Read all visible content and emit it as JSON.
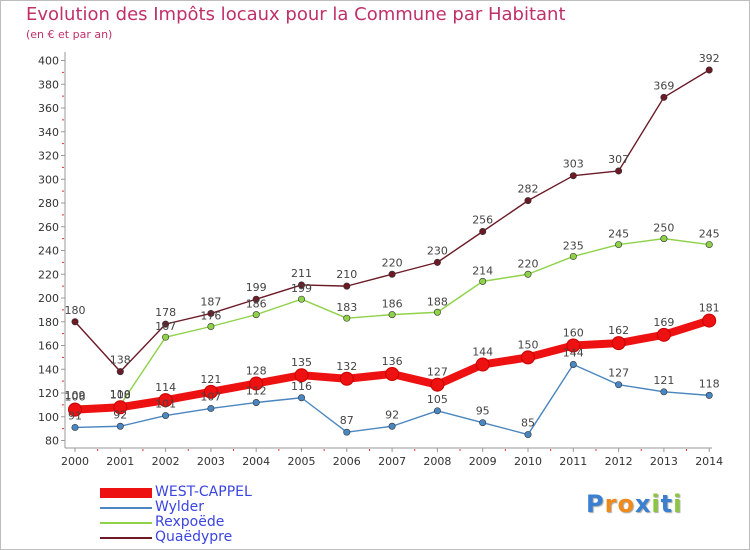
{
  "header": {
    "title": "Evolution des Impôts locaux pour la Commune par Habitant",
    "subtitle": "(en € et par an)"
  },
  "colors": {
    "title": "#c0306a",
    "axis": "#999999",
    "legend_text": "#3b45e0"
  },
  "chart_data": {
    "type": "line",
    "title": "Evolution des Impôts locaux pour la Commune par Habitant",
    "ylabel": "(en € et par an)",
    "xlabel": "",
    "ylim": [
      80,
      400
    ],
    "yticks": [
      80,
      100,
      120,
      140,
      160,
      180,
      200,
      220,
      240,
      260,
      280,
      300,
      320,
      340,
      360,
      380,
      400
    ],
    "categories": [
      "2000",
      "2001",
      "2002",
      "2003",
      "2004",
      "2005",
      "2006",
      "2007",
      "2008",
      "2009",
      "2010",
      "2011",
      "2012",
      "2013",
      "2014"
    ],
    "legend_position": "bottom-left",
    "series": [
      {
        "name": "Quaëdypre",
        "color": "#6b1a26",
        "values": [
          180,
          138,
          178,
          187,
          199,
          211,
          210,
          220,
          230,
          256,
          282,
          303,
          307,
          369,
          392
        ]
      },
      {
        "name": "Rexpoëde",
        "color": "#8fd24a",
        "values": [
          109,
          110,
          167,
          176,
          186,
          199,
          183,
          186,
          188,
          214,
          220,
          235,
          245,
          250,
          245
        ]
      },
      {
        "name": "Wylder",
        "color": "#4a86c0",
        "values": [
          91,
          92,
          101,
          107,
          112,
          116,
          87,
          92,
          105,
          95,
          85,
          144,
          127,
          121,
          118
        ]
      },
      {
        "name": "WEST-CAPPEL",
        "color": "#ee1111",
        "values": [
          106,
          108,
          114,
          121,
          128,
          135,
          132,
          136,
          127,
          144,
          150,
          160,
          162,
          169,
          181
        ]
      }
    ],
    "data_labels": {
      "Quaëdypre": [
        "180",
        "138",
        "178",
        "187",
        "199",
        "211",
        "210",
        "220",
        "230",
        "256",
        "282",
        "303",
        "307",
        "369",
        "392"
      ],
      "Rexpoëde": [
        "109",
        "110",
        "167",
        "176",
        "186",
        "199",
        "183",
        "186",
        "188",
        "214",
        "220",
        "235",
        "245",
        "250",
        "245"
      ],
      "Wylder": [
        "91",
        "92",
        "101",
        "107",
        "112",
        "116",
        "87",
        "92",
        "105",
        "95",
        "85",
        "144",
        "127",
        "121",
        "118"
      ],
      "WEST-CAPPEL": [
        "106",
        "108",
        "114",
        "121",
        "128",
        "135",
        "132",
        "136",
        "127",
        "144",
        "150",
        "160",
        "162",
        "169",
        "181"
      ]
    }
  },
  "legend": {
    "items": [
      {
        "label": "WEST-CAPPEL",
        "color": "#ee1111"
      },
      {
        "label": "Wylder",
        "color": "#4a86c0"
      },
      {
        "label": "Rexpoëde",
        "color": "#8fd24a"
      },
      {
        "label": "Quaëdypre",
        "color": "#6b1a26"
      }
    ]
  },
  "logo": {
    "letters": [
      "P",
      "r",
      "o",
      "x",
      "i",
      "t",
      "i"
    ],
    "colors": [
      "#3a7fd0",
      "#f08a1a",
      "#f08a1a",
      "#3a7fd0",
      "#8cc63f",
      "#3a7fd0",
      "#8cc63f"
    ]
  }
}
